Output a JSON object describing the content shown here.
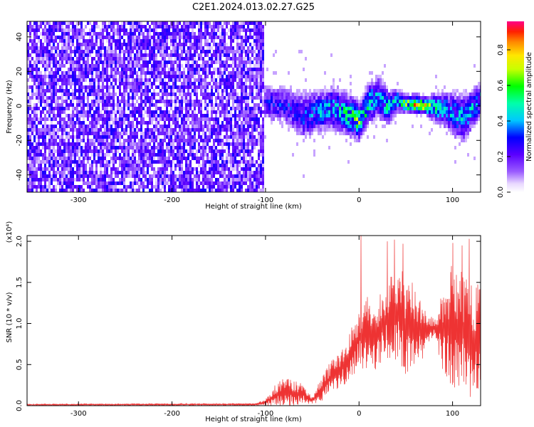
{
  "title": "C2E1.2024.013.02.27.G25",
  "chart_data": [
    {
      "type": "heatmap",
      "xlabel": "Height of straight line (km)",
      "ylabel": "Frequency (Hz)",
      "xlim": [
        -355,
        130
      ],
      "ylim": [
        -50,
        49
      ],
      "xticks": [
        -300,
        -200,
        -100,
        0,
        100
      ],
      "yticks": [
        -40,
        -20,
        0,
        20,
        40
      ],
      "noise_region_x": [
        -355,
        -102
      ],
      "signal_ridge": {
        "x": [
          -102,
          -90,
          -80,
          -70,
          -60,
          -50,
          -40,
          -30,
          -20,
          -10,
          0,
          10,
          20,
          30,
          40,
          50,
          60,
          70,
          80,
          90,
          100,
          110,
          120,
          130
        ],
        "freq": [
          3,
          2,
          1,
          -2,
          -5,
          -3,
          -2,
          0,
          -2,
          -5,
          -8,
          3,
          6,
          0,
          4,
          2,
          2,
          1,
          0,
          -1,
          -4,
          -6,
          -1,
          5
        ],
        "spread": [
          8,
          9,
          8,
          10,
          11,
          10,
          9,
          10,
          10,
          9,
          8,
          9,
          10,
          8,
          5,
          4,
          4,
          4,
          6,
          8,
          10,
          11,
          9,
          7
        ],
        "amplitude": [
          0.3,
          0.3,
          0.35,
          0.3,
          0.35,
          0.4,
          0.45,
          0.45,
          0.5,
          0.6,
          0.75,
          0.5,
          0.45,
          0.5,
          0.55,
          0.7,
          0.85,
          0.8,
          0.6,
          0.45,
          0.45,
          0.45,
          0.5,
          0.45
        ]
      },
      "colorbar": {
        "label": "Normalized spectral amplitude",
        "ticks": [
          "0.0",
          "0.2",
          "0.4",
          "0.6",
          "0.8"
        ],
        "range": [
          0,
          0.96
        ]
      }
    },
    {
      "type": "line",
      "xlabel": "Height of straight line (km)",
      "ylabel": "SNR (10 * v/v)",
      "y_multiplier_label": "(x10⁴)",
      "xlim": [
        -355,
        130
      ],
      "ylim": [
        0,
        2.07
      ],
      "xticks": [
        -300,
        -200,
        -100,
        0,
        100
      ],
      "yticks": [
        "0.0",
        "0.5",
        "1.0",
        "1.5",
        "2.0"
      ],
      "color": "#ee3333",
      "series": [
        {
          "x": [
            -355,
            -110,
            -100,
            -90,
            -80,
            -70,
            -60,
            -50,
            -40,
            -30,
            -20,
            -10,
            0,
            10,
            20,
            30,
            40,
            50,
            60,
            70,
            80,
            90,
            100,
            110,
            120,
            130
          ],
          "y_upper": [
            0.02,
            0.03,
            0.08,
            0.25,
            0.35,
            0.3,
            0.28,
            0.1,
            0.35,
            0.55,
            0.65,
            0.9,
            1.2,
            1.35,
            1.3,
            1.55,
            1.75,
            1.6,
            1.5,
            1.2,
            1.05,
            1.45,
            1.75,
            1.7,
            1.55,
            1.45
          ],
          "y_lower": [
            0.0,
            0.0,
            0.0,
            0.0,
            0.0,
            0.0,
            0.02,
            0.02,
            0.05,
            0.15,
            0.2,
            0.3,
            0.45,
            0.4,
            0.45,
            0.55,
            0.5,
            0.35,
            0.45,
            0.6,
            0.85,
            0.4,
            0.2,
            0.15,
            0.1,
            0.15
          ],
          "peak_spikes": [
            [
              2,
              2.07
            ],
            [
              30,
              2.0
            ],
            [
              38,
              2.02
            ],
            [
              47,
              1.97
            ],
            [
              100,
              1.98
            ],
            [
              110,
              1.95
            ],
            [
              118,
              2.03
            ]
          ]
        }
      ]
    }
  ]
}
